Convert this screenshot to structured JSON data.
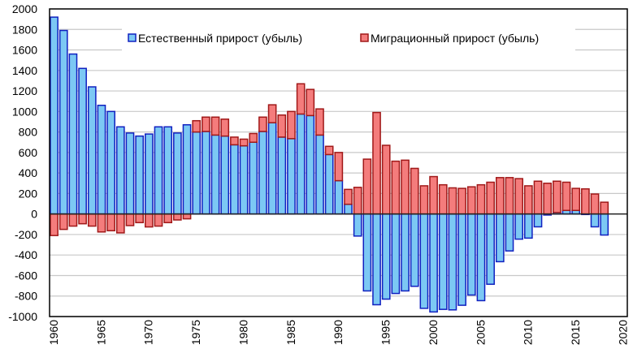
{
  "chart_data": {
    "type": "bar",
    "stacked": true,
    "x": [
      1960,
      1961,
      1962,
      1963,
      1964,
      1965,
      1966,
      1967,
      1968,
      1969,
      1970,
      1971,
      1972,
      1973,
      1974,
      1975,
      1976,
      1977,
      1978,
      1979,
      1980,
      1981,
      1982,
      1983,
      1984,
      1985,
      1986,
      1987,
      1988,
      1989,
      1990,
      1991,
      1992,
      1993,
      1994,
      1995,
      1996,
      1997,
      1998,
      1999,
      2000,
      2001,
      2002,
      2003,
      2004,
      2005,
      2006,
      2007,
      2008,
      2009,
      2010,
      2011,
      2012,
      2013,
      2014,
      2015,
      2016,
      2017,
      2018
    ],
    "series": [
      {
        "name": "Естественный прирост (убыль)",
        "color": "#7cc8f4",
        "edge": "#1020c0",
        "values": [
          1920,
          1790,
          1560,
          1420,
          1240,
          1060,
          1000,
          850,
          790,
          760,
          780,
          850,
          850,
          790,
          870,
          800,
          805,
          770,
          760,
          675,
          665,
          700,
          805,
          890,
          750,
          735,
          975,
          960,
          770,
          580,
          325,
          95,
          -215,
          -750,
          -885,
          -830,
          -775,
          -750,
          -705,
          -920,
          -955,
          -930,
          -935,
          -890,
          -790,
          -845,
          -685,
          -465,
          -360,
          -245,
          -235,
          -125,
          -10,
          15,
          35,
          35,
          -5,
          -125,
          -205
        ]
      },
      {
        "name": "Миграционный  прирост (убыль)",
        "color": "#f47c7c",
        "edge": "#a01818",
        "values": [
          -210,
          -150,
          -118,
          -95,
          -118,
          -175,
          -163,
          -184,
          -113,
          -84,
          -126,
          -118,
          -84,
          -58,
          -47,
          110,
          140,
          175,
          165,
          75,
          65,
          85,
          140,
          175,
          215,
          265,
          295,
          255,
          255,
          80,
          275,
          145,
          260,
          535,
          990,
          670,
          515,
          525,
          445,
          275,
          365,
          285,
          255,
          250,
          265,
          285,
          310,
          355,
          355,
          345,
          275,
          320,
          300,
          305,
          275,
          215,
          245,
          195,
          115
        ]
      }
    ],
    "ylim": [
      -1000,
      2000
    ],
    "yticks": [
      "2000",
      "1800",
      "1600",
      "1400",
      "1200",
      "1000",
      "800",
      "600",
      "400",
      "200",
      "0",
      "-200",
      "-400",
      "-600",
      "-800",
      "-1000"
    ],
    "xlim": [
      1960,
      2020
    ],
    "xticks": [
      "1960",
      "1965",
      "1970",
      "1975",
      "1980",
      "1985",
      "1990",
      "1995",
      "2000",
      "2005",
      "2010",
      "2015",
      "2020"
    ],
    "grid": true,
    "legend": "top"
  }
}
